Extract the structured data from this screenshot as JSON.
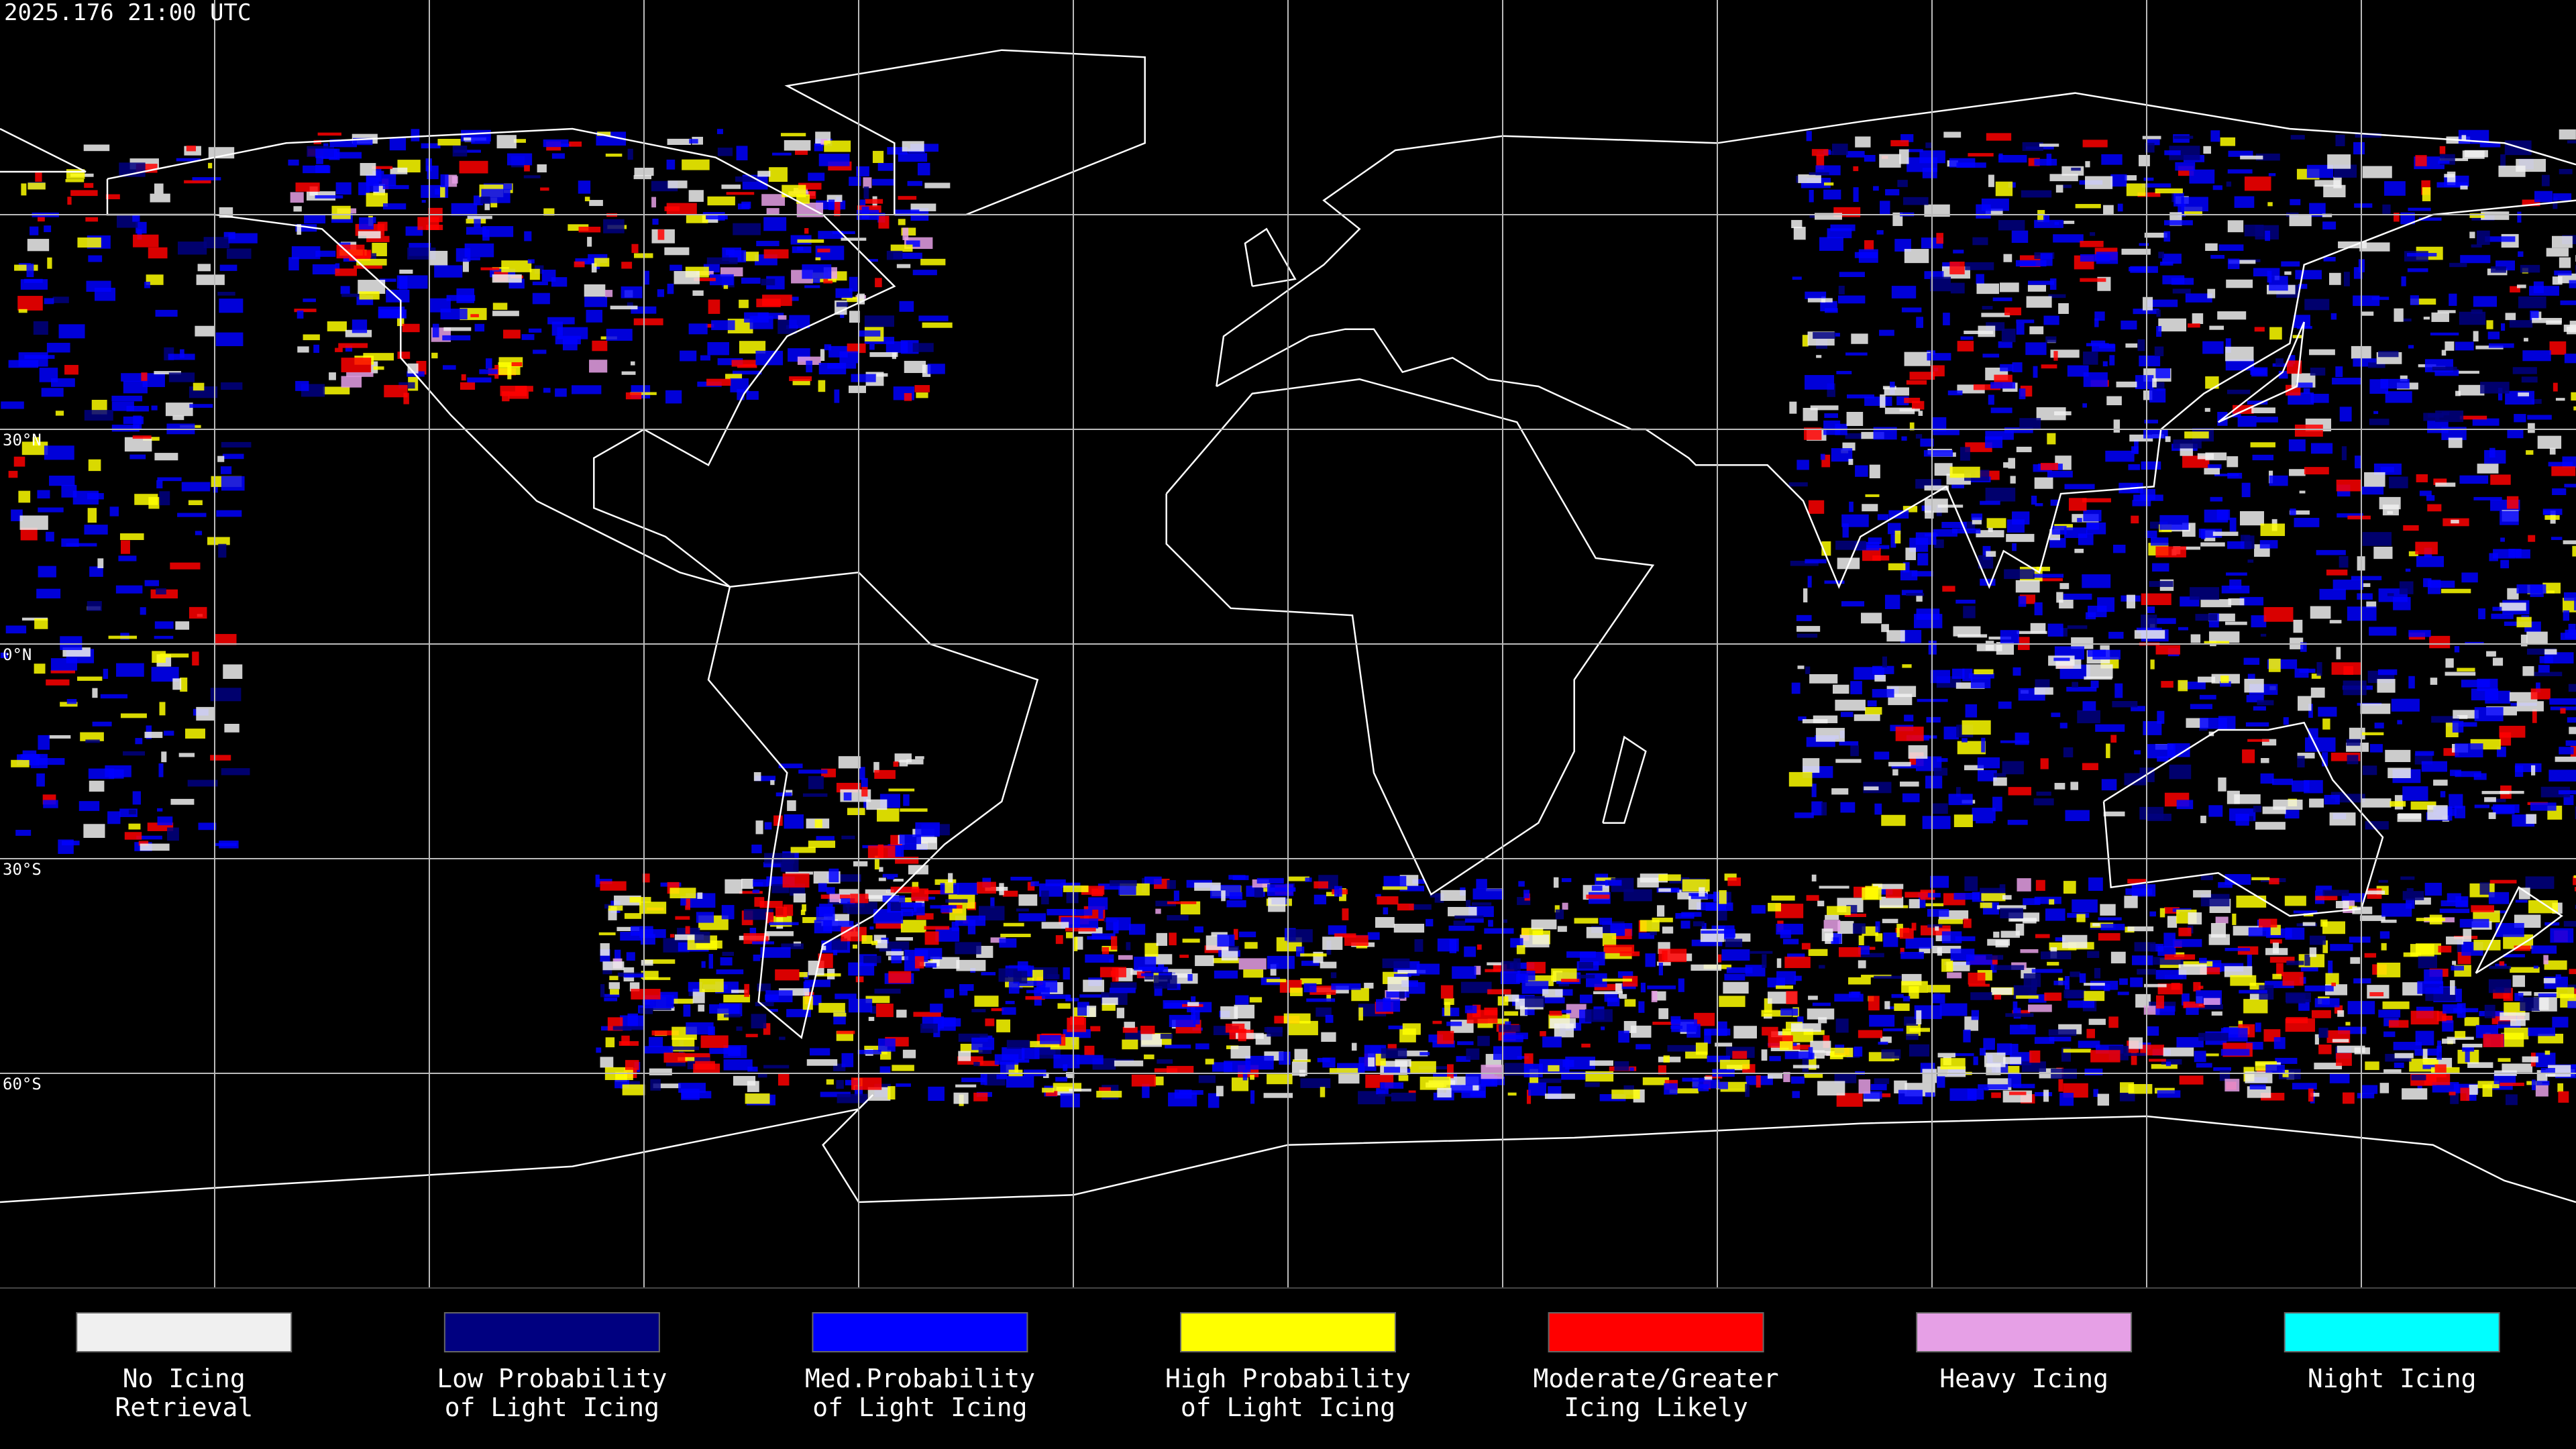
{
  "header": {
    "timestamp": "2025.176 21:00 UTC"
  },
  "map": {
    "lat_labels": [
      "30°N",
      "0°N",
      "30°S",
      "60°S"
    ]
  },
  "legend": {
    "items": [
      {
        "color": "#f0f0f0",
        "label": [
          "No Icing",
          "Retrieval"
        ]
      },
      {
        "color": "#000080",
        "label": [
          "Low Probability",
          "of Light Icing"
        ]
      },
      {
        "color": "#0000ff",
        "label": [
          "Med.Probability",
          "of Light Icing"
        ]
      },
      {
        "color": "#ffff00",
        "label": [
          "High Probability",
          "of Light Icing"
        ]
      },
      {
        "color": "#ff0000",
        "label": [
          "Moderate/Greater",
          "Icing Likely"
        ]
      },
      {
        "color": "#e6a0e6",
        "label": [
          "Heavy Icing"
        ]
      },
      {
        "color": "#00ffff",
        "label": [
          "Night Icing"
        ]
      }
    ]
  }
}
